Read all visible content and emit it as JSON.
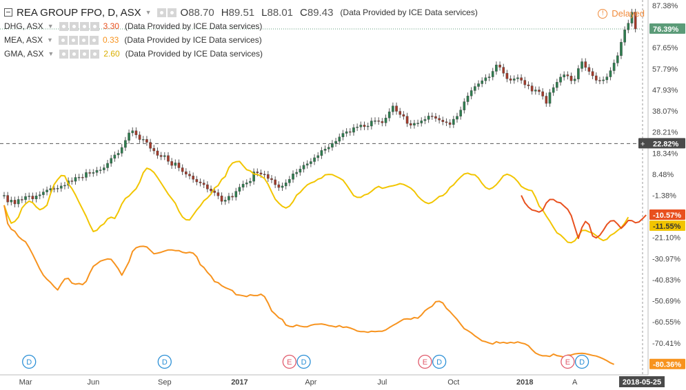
{
  "header": {
    "main_symbol": "REA GROUP FPO, D, ASX",
    "ohlc": [
      {
        "key": "O",
        "value": "88.70"
      },
      {
        "key": "H",
        "value": "89.51"
      },
      {
        "key": "L",
        "value": "88.01"
      },
      {
        "key": "C",
        "value": "89.43"
      }
    ],
    "credit": "(Data Provided by ICE Data services)",
    "delayed_label": "Delayed"
  },
  "compare_series": [
    {
      "symbol": "DHG, ASX",
      "value": "3.30",
      "color": "#e8501e",
      "credit": "(Data Provided by ICE Data services)"
    },
    {
      "symbol": "MEA, ASX",
      "value": "0.33",
      "color": "#f7931e",
      "credit": "(Data Provided by ICE Data services)"
    },
    {
      "symbol": "GMA, ASX",
      "value": "2.60",
      "color": "#f2c500",
      "credit": "(Data Provided by ICE Data services)"
    }
  ],
  "chart_data": {
    "type": "line",
    "scale": "percent",
    "grid": false,
    "legend_position": "top-left",
    "y_ticks": [
      "87.38%",
      "76.39%",
      "67.65%",
      "57.79%",
      "47.93%",
      "38.07%",
      "28.21%",
      "22.82%",
      "18.34%",
      "8.48%",
      "-1.38%",
      "-10.57%",
      "-11.55%",
      "-21.10%",
      "-30.97%",
      "-40.83%",
      "-50.69%",
      "-60.55%",
      "-70.41%",
      "-80.36%"
    ],
    "ylim": [
      -84,
      88
    ],
    "x_ticks": [
      "Mar",
      "Jun",
      "Sep",
      "2017",
      "Apr",
      "Jul",
      "Oct",
      "2018",
      "A"
    ],
    "x_tick_index": [
      6,
      25,
      45,
      66,
      86,
      106,
      126,
      146,
      160
    ],
    "crosshair": {
      "y_value": 22.82,
      "label": "22.82%",
      "x_label": "2018-05-25"
    },
    "last_value_labels": [
      {
        "series": "REA GROUP FPO",
        "value": 76.39,
        "label": "76.39%",
        "bg": "#5b9b78",
        "fg": "#ffffff"
      },
      {
        "series": "DHG, ASX",
        "value": -10.57,
        "label": "-10.57%",
        "bg": "#e8501e",
        "fg": "#ffffff"
      },
      {
        "series": "GMA, ASX",
        "value": -11.55,
        "label": "-11.55%",
        "bg": "#f2c500",
        "fg": "#333333"
      },
      {
        "series": "MEA, ASX",
        "value": -80.36,
        "label": "-80.36%",
        "bg": "#f7931e",
        "fg": "#ffffff"
      }
    ],
    "events": [
      {
        "type": "D",
        "index": 7
      },
      {
        "type": "D",
        "index": 45
      },
      {
        "type": "E",
        "index": 80
      },
      {
        "type": "D",
        "index": 84
      },
      {
        "type": "D",
        "index": 122
      },
      {
        "type": "E",
        "index": 118
      },
      {
        "type": "E",
        "index": 158
      },
      {
        "type": "D",
        "index": 162
      }
    ],
    "x_count": 180,
    "series": [
      {
        "name": "REA GROUP FPO",
        "color": "#333333",
        "style": "candles",
        "values": [
          -1.4,
          -4.5,
          -3.6,
          -5.4,
          -3.3,
          -3.4,
          -1.9,
          -1.7,
          -3.1,
          -1.6,
          -1.1,
          0.2,
          1.1,
          1.8,
          1.6,
          1.9,
          3.0,
          3.3,
          5.4,
          5.2,
          7.0,
          7.1,
          7.0,
          9.3,
          8.9,
          9.3,
          10.3,
          10.5,
          11.5,
          13.6,
          15.9,
          17.5,
          18.3,
          21.0,
          24.3,
          27.8,
          28.8,
          26.9,
          24.7,
          24.8,
          23.4,
          20.6,
          19.4,
          17.3,
          16.7,
          17.2,
          14.5,
          12.6,
          13.8,
          11.5,
          9.7,
          8.5,
          7.7,
          6.1,
          4.9,
          4.4,
          3.6,
          1.6,
          0.7,
          -0.1,
          -1.6,
          -4.2,
          -3.6,
          -1.8,
          -2.2,
          0.5,
          2.4,
          3.9,
          4.5,
          5.2,
          9.6,
          9.1,
          8.5,
          8.4,
          6.5,
          5.9,
          3.6,
          2.3,
          3.0,
          4.5,
          6.1,
          8.7,
          9.4,
          10.9,
          12.7,
          13.4,
          14.4,
          16.2,
          17.2,
          19.6,
          20.3,
          21.1,
          22.9,
          23.9,
          25.9,
          27.6,
          28.4,
          28.1,
          30.3,
          30.6,
          31.5,
          30.7,
          31.0,
          33.4,
          33.5,
          33.2,
          32.5,
          34.8,
          37.7,
          40.4,
          37.9,
          36.4,
          35.6,
          32.2,
          31.4,
          32.3,
          32.4,
          33.5,
          34.1,
          35.7,
          35.5,
          34.6,
          33.8,
          33.0,
          32.6,
          31.7,
          34.2,
          35.6,
          38.5,
          42.4,
          45.1,
          47.6,
          49.5,
          50.8,
          52.2,
          53.6,
          54.0,
          56.6,
          59.6,
          58.5,
          55.7,
          53.1,
          52.4,
          53.1,
          53.6,
          52.4,
          50.3,
          49.8,
          47.3,
          47.9,
          47.1,
          45.0,
          41.6,
          46.7,
          49.0,
          51.5,
          53.9,
          55.0,
          54.4,
          52.2,
          53.0,
          57.9,
          61.1,
          58.4,
          56.5,
          54.5,
          52.4,
          52.2,
          52.6,
          54.0,
          56.9,
          60.5,
          63.9,
          70.2,
          76.0,
          79.1,
          84.2,
          76.4
        ]
      },
      {
        "name": "GMA, ASX",
        "color": "#f2c500",
        "style": "line",
        "values": [
          -6.0,
          -10.8,
          -14.4,
          -13.6,
          -11.6,
          -7.3,
          -5.4,
          -4.1,
          -4.8,
          -6.8,
          -8.1,
          -7.4,
          -6.0,
          -0.6,
          3.6,
          6.0,
          7.9,
          7.7,
          4.0,
          1.8,
          -1.2,
          -4.6,
          -7.9,
          -11.2,
          -15.1,
          -18.3,
          -17.7,
          -15.7,
          -14.7,
          -12.4,
          -11.6,
          -12.2,
          -9.2,
          -5.4,
          -2.8,
          -1.7,
          0.1,
          1.7,
          4.8,
          9.2,
          11.3,
          10.7,
          9.3,
          7.0,
          4.4,
          1.8,
          -0.8,
          -2.9,
          -5.1,
          -8.8,
          -11.5,
          -12.8,
          -12.9,
          -10.6,
          -8.2,
          -6.3,
          -3.9,
          -2.6,
          -0.8,
          2.1,
          3.2,
          6.1,
          7.4,
          11.6,
          13.7,
          14.3,
          14.5,
          12.5,
          10.6,
          10.1,
          8.6,
          8.4,
          7.6,
          6.5,
          3.8,
          0.2,
          -3.2,
          -5.0,
          -6.5,
          -7.3,
          -6.4,
          -4.3,
          -1.3,
          -0.0,
          1.9,
          3.5,
          4.4,
          5.0,
          6.2,
          6.7,
          8.2,
          8.4,
          8.3,
          7.5,
          6.7,
          5.7,
          3.5,
          1.0,
          -1.5,
          -2.3,
          -2.3,
          -1.2,
          -0.7,
          0.5,
          1.9,
          2.8,
          1.9,
          2.3,
          2.8,
          3.1,
          3.5,
          4.1,
          3.7,
          2.9,
          2.0,
          0.5,
          -1.8,
          -3.4,
          -4.6,
          -5.2,
          -4.6,
          -3.3,
          -1.9,
          -1.5,
          -0.1,
          2.3,
          3.5,
          5.5,
          7.2,
          8.6,
          9.0,
          8.3,
          8.2,
          6.7,
          4.2,
          2.3,
          1.5,
          2.2,
          3.6,
          5.6,
          7.8,
          8.5,
          7.9,
          6.8,
          5.1,
          2.8,
          1.8,
          1.1,
          0.8,
          -2.3,
          -6.4,
          -8.3,
          -11.0,
          -13.5,
          -16.3,
          -18.9,
          -19.9,
          -21.5,
          -23.3,
          -23.5,
          -22.6,
          -20.3,
          -17.8,
          -17.7,
          -18.5,
          -19.0,
          -20.2,
          -21.6,
          -22.5,
          -21.9,
          -20.1,
          -19.2,
          -17.8,
          -16.5,
          -14.4,
          -11.6
        ]
      },
      {
        "name": "MEA, ASX",
        "color": "#f7931e",
        "style": "line",
        "values": [
          -6.0,
          -14.6,
          -17.2,
          -18.2,
          -20.6,
          -22.1,
          -23.1,
          -25.8,
          -29.0,
          -32.4,
          -35.8,
          -38.7,
          -40.6,
          -42.1,
          -44.0,
          -45.6,
          -42.8,
          -40.5,
          -40.2,
          -42.4,
          -42.9,
          -42.6,
          -43.1,
          -41.6,
          -37.7,
          -34.6,
          -33.4,
          -32.1,
          -31.6,
          -31.1,
          -31.3,
          -33.4,
          -35.7,
          -38.7,
          -35.6,
          -32.4,
          -27.6,
          -25.9,
          -25.3,
          -25.2,
          -25.5,
          -27.1,
          -28.7,
          -28.4,
          -28.0,
          -27.4,
          -26.9,
          -26.9,
          -27.2,
          -27.2,
          -28.0,
          -28.3,
          -28.0,
          -28.4,
          -30.1,
          -33.8,
          -35.1,
          -37.4,
          -39.1,
          -41.7,
          -42.2,
          -43.6,
          -44.5,
          -45.2,
          -45.9,
          -47.8,
          -48.0,
          -48.3,
          -48.7,
          -47.9,
          -48.2,
          -48.2,
          -47.6,
          -48.7,
          -51.7,
          -55.4,
          -56.9,
          -58.6,
          -59.4,
          -62.0,
          -62.6,
          -62.8,
          -62.0,
          -62.5,
          -62.8,
          -62.8,
          -62.1,
          -61.7,
          -61.6,
          -61.5,
          -61.8,
          -62.3,
          -62.5,
          -62.9,
          -62.3,
          -63.1,
          -62.9,
          -63.4,
          -64.0,
          -64.8,
          -65.1,
          -65.1,
          -65.4,
          -64.9,
          -65.1,
          -64.9,
          -64.9,
          -64.3,
          -63.2,
          -62.2,
          -61.3,
          -60.3,
          -59.3,
          -59.1,
          -59.3,
          -58.5,
          -58.8,
          -57.3,
          -55.3,
          -54.1,
          -53.2,
          -51.1,
          -50.9,
          -51.7,
          -54.2,
          -55.7,
          -57.6,
          -59.4,
          -61.6,
          -63.7,
          -64.6,
          -65.7,
          -67.1,
          -68.2,
          -69.4,
          -69.8,
          -70.4,
          -70.9,
          -69.8,
          -70.4,
          -70.1,
          -70.5,
          -70.1,
          -70.4,
          -69.9,
          -70.4,
          -70.8,
          -71.7,
          -73.5,
          -75.1,
          -75.9,
          -76.4,
          -76.4,
          -76.7,
          -75.6,
          -76.3,
          -76.6,
          -77.0,
          -76.1,
          -76.0,
          -75.5,
          -75.3,
          -75.2,
          -75.4,
          -75.8,
          -76.2,
          -76.5,
          -77.1,
          -77.8,
          -78.7,
          -79.7,
          -80.4
        ]
      },
      {
        "name": "DHG, ASX",
        "color": "#e8501e",
        "style": "line",
        "start_index": 145,
        "values": [
          -1.4,
          -4.9,
          -6.9,
          -8.2,
          -8.6,
          -9.2,
          -8.3,
          -5.0,
          -3.3,
          -3.3,
          -4.5,
          -4.9,
          -6.4,
          -7.9,
          -10.8,
          -16.2,
          -21.5,
          -16.4,
          -13.6,
          -15.0,
          -20.4,
          -21.3,
          -20.1,
          -17.7,
          -15.0,
          -13.4,
          -13.2,
          -14.8,
          -16.8,
          -15.2,
          -13.1,
          -13.2,
          -14.2,
          -13.8,
          -12.3,
          -10.6
        ]
      }
    ]
  }
}
